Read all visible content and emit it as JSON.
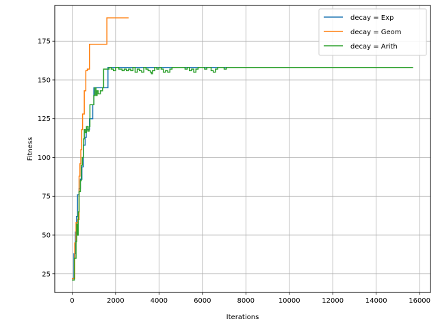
{
  "chart_data": {
    "type": "line",
    "xlabel": "Iterations",
    "ylabel": "Fitness",
    "xlim": [
      -800,
      16500
    ],
    "ylim": [
      13,
      198
    ],
    "xticks": [
      0,
      2000,
      4000,
      6000,
      8000,
      10000,
      12000,
      14000,
      16000
    ],
    "yticks": [
      25,
      50,
      75,
      100,
      125,
      150,
      175
    ],
    "grid": true,
    "legend_position": "top-right",
    "series": [
      {
        "name": "decay = Exp",
        "color": "#1f77b4",
        "points": [
          [
            0,
            22
          ],
          [
            80,
            38
          ],
          [
            150,
            52
          ],
          [
            200,
            62
          ],
          [
            250,
            76
          ],
          [
            320,
            80
          ],
          [
            380,
            86
          ],
          [
            450,
            94
          ],
          [
            520,
            108
          ],
          [
            600,
            113
          ],
          [
            650,
            118
          ],
          [
            750,
            118
          ],
          [
            800,
            125
          ],
          [
            950,
            134
          ],
          [
            1000,
            145
          ],
          [
            1300,
            145
          ],
          [
            1600,
            145
          ],
          [
            1650,
            158
          ],
          [
            10500,
            158
          ]
        ]
      },
      {
        "name": "decay = Geom",
        "color": "#ff7f0e",
        "points": [
          [
            0,
            22
          ],
          [
            120,
            45
          ],
          [
            180,
            58
          ],
          [
            260,
            60
          ],
          [
            320,
            88
          ],
          [
            360,
            96
          ],
          [
            400,
            105
          ],
          [
            440,
            118
          ],
          [
            480,
            128
          ],
          [
            530,
            128
          ],
          [
            560,
            143
          ],
          [
            610,
            143
          ],
          [
            630,
            156
          ],
          [
            700,
            157
          ],
          [
            760,
            157
          ],
          [
            800,
            173
          ],
          [
            1550,
            173
          ],
          [
            1600,
            190
          ],
          [
            2600,
            190
          ]
        ]
      },
      {
        "name": "decay = Arith",
        "color": "#2ca02c",
        "points": [
          [
            0,
            21
          ],
          [
            100,
            35
          ],
          [
            180,
            46
          ],
          [
            210,
            57
          ],
          [
            250,
            50
          ],
          [
            280,
            65
          ],
          [
            320,
            78
          ],
          [
            380,
            85
          ],
          [
            420,
            95
          ],
          [
            470,
            100
          ],
          [
            520,
            112
          ],
          [
            560,
            118
          ],
          [
            600,
            116
          ],
          [
            660,
            120
          ],
          [
            720,
            117
          ],
          [
            780,
            120
          ],
          [
            820,
            134
          ],
          [
            950,
            134
          ],
          [
            1000,
            140
          ],
          [
            1050,
            145
          ],
          [
            1100,
            140
          ],
          [
            1150,
            143
          ],
          [
            1200,
            141
          ],
          [
            1300,
            143
          ],
          [
            1400,
            145
          ],
          [
            1450,
            157
          ],
          [
            1700,
            158
          ],
          [
            1800,
            157
          ],
          [
            1900,
            156
          ],
          [
            2000,
            158
          ],
          [
            2150,
            157
          ],
          [
            2300,
            156
          ],
          [
            2400,
            157
          ],
          [
            2500,
            156
          ],
          [
            2600,
            157
          ],
          [
            2700,
            156
          ],
          [
            2800,
            158
          ],
          [
            2900,
            155
          ],
          [
            3000,
            157
          ],
          [
            3100,
            156
          ],
          [
            3200,
            155
          ],
          [
            3300,
            158
          ],
          [
            3400,
            157
          ],
          [
            3500,
            156
          ],
          [
            3600,
            155
          ],
          [
            3650,
            154
          ],
          [
            3700,
            156
          ],
          [
            3800,
            158
          ],
          [
            3900,
            157
          ],
          [
            4000,
            158
          ],
          [
            4100,
            157
          ],
          [
            4200,
            155
          ],
          [
            4300,
            156
          ],
          [
            4400,
            155
          ],
          [
            4500,
            157
          ],
          [
            4600,
            158
          ],
          [
            5000,
            158
          ],
          [
            5200,
            157
          ],
          [
            5300,
            158
          ],
          [
            5400,
            156
          ],
          [
            5500,
            157
          ],
          [
            5600,
            155
          ],
          [
            5700,
            157
          ],
          [
            5800,
            158
          ],
          [
            6000,
            158
          ],
          [
            6100,
            157
          ],
          [
            6200,
            158
          ],
          [
            6400,
            156
          ],
          [
            6500,
            155
          ],
          [
            6600,
            157
          ],
          [
            6700,
            158
          ],
          [
            6900,
            158
          ],
          [
            7000,
            157
          ],
          [
            7100,
            158
          ],
          [
            15700,
            158
          ]
        ]
      }
    ]
  }
}
